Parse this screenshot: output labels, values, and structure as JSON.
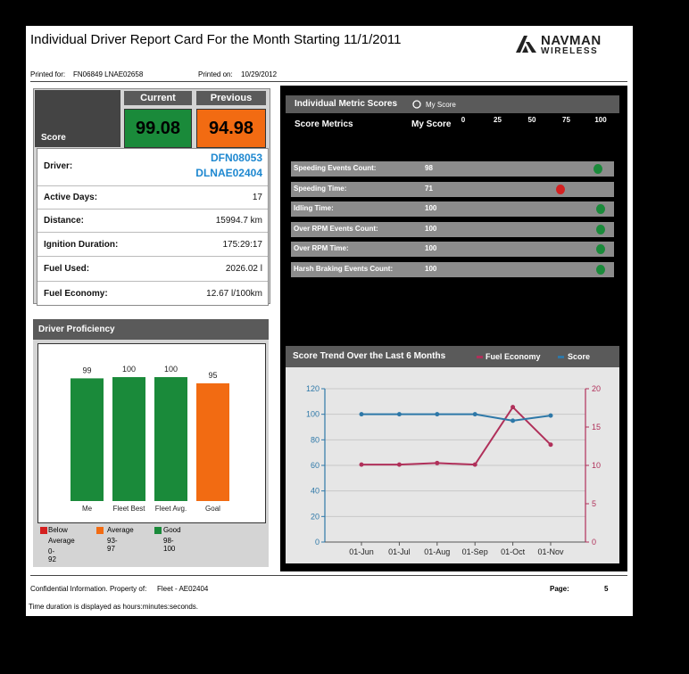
{
  "header": {
    "title": "Individual Driver Report Card For the Month Starting 11/1/2011",
    "logo_top": "NAVMAN",
    "logo_bottom": "WIRELESS",
    "printed_for_label": "Printed for:",
    "printed_for_value": "FN06849 LNAE02658",
    "printed_on_label": "Printed on:",
    "printed_on_value": "10/29/2012"
  },
  "score": {
    "label": "Score",
    "current_label": "Current",
    "previous_label": "Previous",
    "current_value": "99.08",
    "previous_value": "94.98",
    "current_color": "#1a8a3a",
    "previous_color": "#f26b12"
  },
  "driver_info": {
    "driver_label": "Driver:",
    "driver_line1": "DFN08053",
    "driver_line2": "DLNAE02404",
    "rows": [
      {
        "label": "Active Days:",
        "value": "17"
      },
      {
        "label": "Distance:",
        "value": "15994.7 km"
      },
      {
        "label": "Ignition Duration:",
        "value": "175:29:17"
      },
      {
        "label": "Fuel Used:",
        "value": "2026.02 l"
      },
      {
        "label": "Fuel Economy:",
        "value": "12.67 l/100km"
      }
    ]
  },
  "proficiency": {
    "title": "Driver Proficiency",
    "legend": [
      {
        "lines": [
          "Below",
          "Average",
          "0-92"
        ],
        "color": "#d42020"
      },
      {
        "lines": [
          "Average",
          "93-97"
        ],
        "color": "#f26b12"
      },
      {
        "lines": [
          "Good",
          "98-100"
        ],
        "color": "#1a8a3a"
      }
    ]
  },
  "metrics": {
    "title": "Individual Metric Scores",
    "legend_label": "My Score",
    "col_metrics": "Score Metrics",
    "col_score": "My Score",
    "scale": [
      "0",
      "25",
      "50",
      "75",
      "100"
    ],
    "rows": [
      {
        "label": "Speeding Events Count:",
        "score": "98",
        "value": 98,
        "color": "#1a8a3a"
      },
      {
        "label": "Speeding Time:",
        "score": "71",
        "value": 71,
        "color": "#d42020"
      },
      {
        "label": "Idling Time:",
        "score": "100",
        "value": 100,
        "color": "#1a8a3a"
      },
      {
        "label": "Over RPM Events Count:",
        "score": "100",
        "value": 100,
        "color": "#1a8a3a"
      },
      {
        "label": "Over RPM Time:",
        "score": "100",
        "value": 100,
        "color": "#1a8a3a"
      },
      {
        "label": "Harsh Braking Events Count:",
        "score": "100",
        "value": 100,
        "color": "#1a8a3a"
      }
    ]
  },
  "chart_data": [
    {
      "type": "bar",
      "title": "Driver Proficiency",
      "categories": [
        "Me",
        "Fleet Best",
        "Fleet Avg.",
        "Goal"
      ],
      "values": [
        99,
        100,
        100,
        95
      ],
      "data_labels": [
        "99",
        "100",
        "100",
        "95"
      ],
      "colors": [
        "#1a8a3a",
        "#1a8a3a",
        "#1a8a3a",
        "#f26b12"
      ],
      "ylim": [
        0,
        100
      ]
    },
    {
      "type": "line",
      "title": "Score Trend Over the Last 6 Months",
      "categories": [
        "01-Jun",
        "01-Jul",
        "01-Aug",
        "01-Sep",
        "01-Oct",
        "01-Nov"
      ],
      "left_axis": {
        "min": 0,
        "max": 120,
        "ticks": [
          "0",
          "20",
          "40",
          "60",
          "80",
          "100",
          "120"
        ]
      },
      "right_axis": {
        "min": 0,
        "max": 20,
        "ticks": [
          "0",
          "5",
          "10",
          "15",
          "20"
        ]
      },
      "grid": true,
      "series": [
        {
          "name": "Fuel Economy",
          "axis": "right",
          "color": "#b0305a",
          "values": [
            10.1,
            10.1,
            10.3,
            10.1,
            17.6,
            12.7
          ]
        },
        {
          "name": "Score",
          "axis": "left",
          "color": "#2e78a8",
          "values": [
            100,
            100,
            100,
            100,
            95,
            99
          ]
        }
      ]
    }
  ],
  "footer": {
    "confidential": "Confidential Information. Property of:",
    "fleet": "Fleet - AE02404",
    "page_label": "Page:",
    "page_value": "5",
    "note": "Time duration is displayed as hours:minutes:seconds."
  }
}
